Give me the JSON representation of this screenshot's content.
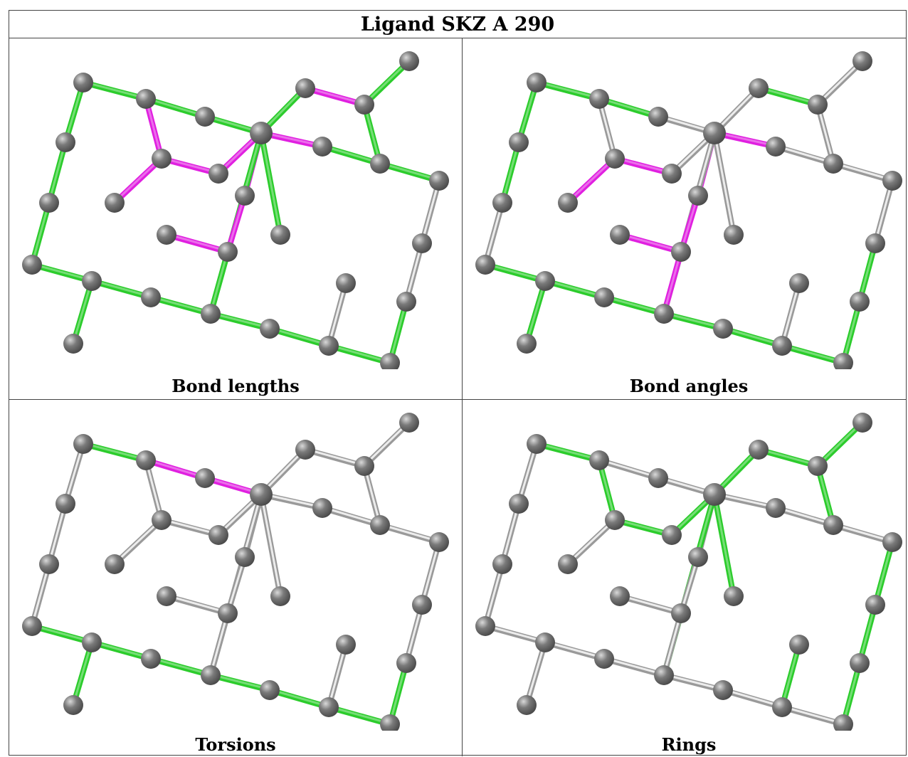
{
  "title": "Ligand SKZ A 290",
  "colors": {
    "green": "#2ccc2c",
    "magenta": "#e020e0",
    "grey": "#c4c4c4",
    "atom": "#7a7a7a"
  },
  "panels": [
    {
      "caption": "Bond lengths",
      "bonds": [
        "m",
        "m",
        "m",
        "g",
        "g",
        "g",
        "m",
        "g",
        "g",
        "m",
        "m",
        "m",
        "m",
        "m",
        "g",
        "g",
        "g",
        "g",
        "g",
        "g",
        "g",
        "g",
        "g",
        "g",
        "g",
        "g",
        "g",
        "g",
        "g",
        "g",
        "n",
        "n",
        "n"
      ]
    },
    {
      "caption": "Bond angles",
      "bonds": [
        "m",
        "n",
        "m",
        "n",
        "n",
        "n",
        "g",
        "n",
        "n",
        "n",
        "m",
        "m",
        "m",
        "m",
        "g",
        "g",
        "n",
        "n",
        "n",
        "g",
        "g",
        "n",
        "m",
        "g",
        "g",
        "g",
        "g",
        "g",
        "g",
        "g",
        "n",
        "n",
        "g"
      ]
    },
    {
      "caption": "Torsions",
      "bonds": [
        "n",
        "n",
        "n",
        "n",
        "n",
        "n",
        "n",
        "n",
        "n",
        "n",
        "n",
        "n",
        "n",
        "n",
        "g",
        "m",
        "m",
        "n",
        "n",
        "n",
        "n",
        "n",
        "n",
        "g",
        "g",
        "g",
        "g",
        "g",
        "g",
        "g",
        "n",
        "n",
        "n"
      ]
    },
    {
      "caption": "Rings",
      "bonds": [
        "n",
        "g",
        "n",
        "g",
        "g",
        "g",
        "g",
        "g",
        "g",
        "g",
        "g",
        "n",
        "n",
        "n",
        "g",
        "n",
        "n",
        "n",
        "n",
        "n",
        "n",
        "n",
        "n",
        "n",
        "n",
        "n",
        "n",
        "n",
        "n",
        "n",
        "g",
        "g",
        "g"
      ]
    }
  ]
}
